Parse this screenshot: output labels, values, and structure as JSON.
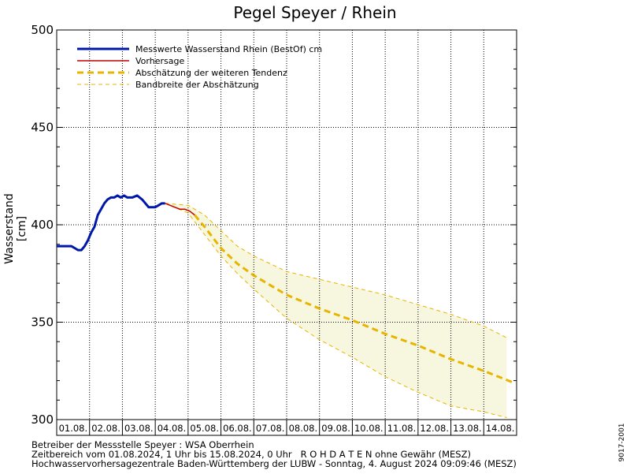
{
  "chart_data": {
    "type": "line",
    "title": "Pegel Speyer / Rhein",
    "ylabel": "Wasserstand [cm]",
    "xlabel": "",
    "ylim": [
      300,
      500
    ],
    "y_ticks": [
      300,
      350,
      400,
      450,
      500
    ],
    "xlim_days": [
      0,
      14
    ],
    "x_tick_labels": [
      "01.08.",
      "02.08.",
      "03.08.",
      "04.08.",
      "05.08.",
      "06.08.",
      "07.08.",
      "08.08.",
      "09.08.",
      "10.08.",
      "11.08.",
      "12.08.",
      "13.08.",
      "14.08."
    ],
    "grid": true,
    "legend_position": "top-left",
    "series": [
      {
        "name": "Messwerte Wasserstand Rhein (BestOf)  cm",
        "color": "#0018a8",
        "style": "solid-thick",
        "x": [
          0.0,
          0.15,
          0.3,
          0.45,
          0.55,
          0.65,
          0.75,
          0.85,
          0.95,
          1.05,
          1.15,
          1.25,
          1.35,
          1.45,
          1.55,
          1.65,
          1.75,
          1.85,
          1.95,
          2.05,
          2.15,
          2.3,
          2.45,
          2.6,
          2.7,
          2.8,
          2.9,
          3.0,
          3.1,
          3.2,
          3.3
        ],
        "y": [
          389,
          389,
          389,
          389,
          388,
          387,
          387,
          389,
          392,
          396,
          399,
          405,
          408,
          411,
          413,
          414,
          414,
          415,
          414,
          415,
          414,
          414,
          415,
          413,
          411,
          409,
          409,
          409,
          410,
          411,
          411
        ]
      },
      {
        "name": "Vorhersage",
        "color": "#c00000",
        "style": "solid",
        "x": [
          3.3,
          3.45,
          3.6,
          3.75,
          3.9,
          4.05,
          4.2
        ],
        "y": [
          411,
          410,
          409,
          408,
          408,
          407,
          405
        ]
      },
      {
        "name": "Abschätzung der weiteren Tendenz",
        "color": "#e8b400",
        "style": "dashed-thick",
        "x": [
          4.2,
          4.5,
          5.0,
          5.5,
          6.0,
          7.0,
          8.0,
          9.0,
          10.0,
          11.0,
          12.0,
          13.0,
          13.9
        ],
        "y": [
          405,
          399,
          388,
          380,
          374,
          364,
          357,
          351,
          344,
          338,
          331,
          325,
          319
        ]
      },
      {
        "name": "Bandbreite der Abschätzung",
        "color": "#e8b400",
        "style": "dashed-thin",
        "fill": "#f7f7e0",
        "x": [
          3.3,
          4.0,
          4.5,
          5.0,
          5.5,
          6.0,
          7.0,
          8.0,
          9.0,
          10.0,
          11.0,
          12.0,
          13.0,
          13.7
        ],
        "upper": [
          411,
          410,
          405,
          397,
          389,
          384,
          376,
          372,
          368,
          364,
          359,
          354,
          348,
          342
        ],
        "lower": [
          411,
          406,
          395,
          384,
          375,
          367,
          352,
          341,
          332,
          322,
          314,
          307,
          304,
          301
        ]
      }
    ]
  },
  "footer": {
    "line1": "Betreiber der Messstelle Speyer : WSA Oberrhein",
    "line2": "Zeitbereich vom 01.08.2024, 1 Uhr bis 15.08.2024, 0 Uhr   R O H D A T E N ohne Gewähr (MESZ)",
    "line3": "Hochwasservorhersagezentrale Baden-Württemberg der LUBW - Sonntag, 4. August 2024 09:09:46 (MESZ)"
  },
  "side_id": "9017-2001"
}
